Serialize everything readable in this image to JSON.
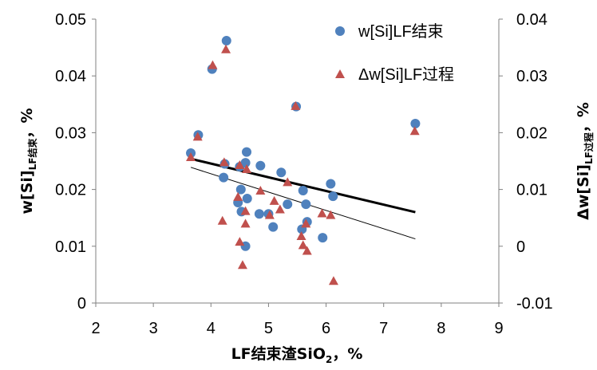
{
  "chart_data": {
    "type": "scatter",
    "title": "",
    "xlabel": {
      "main": "LF结束渣SiO",
      "sub": "2",
      "tail": "，%"
    },
    "ylabel": {
      "main": "w[Si]",
      "sub": "LF结束",
      "tail": "，%"
    },
    "y2label": {
      "main": "Δw[Si]",
      "sub": "LF过程",
      "tail": "，%"
    },
    "xlim": [
      2,
      9
    ],
    "ylim": [
      0,
      0.05
    ],
    "y2lim": [
      -0.01,
      0.04
    ],
    "xticks": [
      "2",
      "3",
      "4",
      "5",
      "6",
      "7",
      "8",
      "9"
    ],
    "yticks": [
      "0",
      "0.01",
      "0.02",
      "0.03",
      "0.04",
      "0.05"
    ],
    "y2ticks": [
      "-0.01",
      "0",
      "0.01",
      "0.02",
      "0.03",
      "0.04"
    ],
    "grid": false,
    "legend_position": "top-right",
    "colors": {
      "circle": "#4F81BD",
      "triangle": "#C0504D"
    },
    "series": [
      {
        "name": "w[Si]LF结束",
        "marker": "circle",
        "axis": "left",
        "points": [
          [
            3.65,
            0.0264
          ],
          [
            3.78,
            0.0296
          ],
          [
            4.02,
            0.0412
          ],
          [
            4.22,
            0.0221
          ],
          [
            4.24,
            0.0245
          ],
          [
            4.27,
            0.0462
          ],
          [
            4.47,
            0.0177
          ],
          [
            4.5,
            0.024
          ],
          [
            4.52,
            0.02
          ],
          [
            4.53,
            0.0161
          ],
          [
            4.6,
            0.0247
          ],
          [
            4.6,
            0.01
          ],
          [
            4.62,
            0.0266
          ],
          [
            4.63,
            0.0184
          ],
          [
            4.84,
            0.0157
          ],
          [
            4.86,
            0.0242
          ],
          [
            5.0,
            0.0157
          ],
          [
            5.08,
            0.0134
          ],
          [
            5.22,
            0.023
          ],
          [
            5.33,
            0.0174
          ],
          [
            5.48,
            0.0346
          ],
          [
            5.58,
            0.013
          ],
          [
            5.6,
            0.0198
          ],
          [
            5.65,
            0.0174
          ],
          [
            5.67,
            0.0143
          ],
          [
            5.94,
            0.0115
          ],
          [
            6.08,
            0.021
          ],
          [
            6.12,
            0.0188
          ],
          [
            7.55,
            0.0316
          ]
        ]
      },
      {
        "name": "Δw[Si]LF过程",
        "marker": "triangle",
        "axis": "right",
        "points": [
          [
            3.65,
            0.0157
          ],
          [
            3.77,
            0.0193
          ],
          [
            4.03,
            0.0319
          ],
          [
            4.2,
            0.0045
          ],
          [
            4.23,
            0.0148
          ],
          [
            4.26,
            0.0347
          ],
          [
            4.47,
            0.0087
          ],
          [
            4.5,
            0.0143
          ],
          [
            4.5,
            0.0008
          ],
          [
            4.55,
            -0.0033
          ],
          [
            4.6,
            0.0062
          ],
          [
            4.62,
            0.0136
          ],
          [
            4.6,
            0.004
          ],
          [
            4.86,
            0.0098
          ],
          [
            5.02,
            0.0055
          ],
          [
            5.1,
            0.008
          ],
          [
            5.2,
            0.0065
          ],
          [
            5.33,
            0.0113
          ],
          [
            5.47,
            0.0247
          ],
          [
            5.57,
            0.0018
          ],
          [
            5.6,
            0.0002
          ],
          [
            5.65,
            0.004
          ],
          [
            5.67,
            -0.0008
          ],
          [
            5.93,
            0.0058
          ],
          [
            6.08,
            0.0055
          ],
          [
            6.13,
            -0.0061
          ],
          [
            7.54,
            0.0203
          ]
        ]
      }
    ],
    "trendlines": [
      {
        "series": "w[Si]LF结束",
        "style": "thick",
        "from": [
          3.65,
          0.0254
        ],
        "to": [
          7.55,
          0.016
        ]
      },
      {
        "series": "Δw[Si]LF过程",
        "style": "thin",
        "from": [
          3.65,
          0.0139
        ],
        "to": [
          7.55,
          0.0013
        ]
      }
    ]
  }
}
